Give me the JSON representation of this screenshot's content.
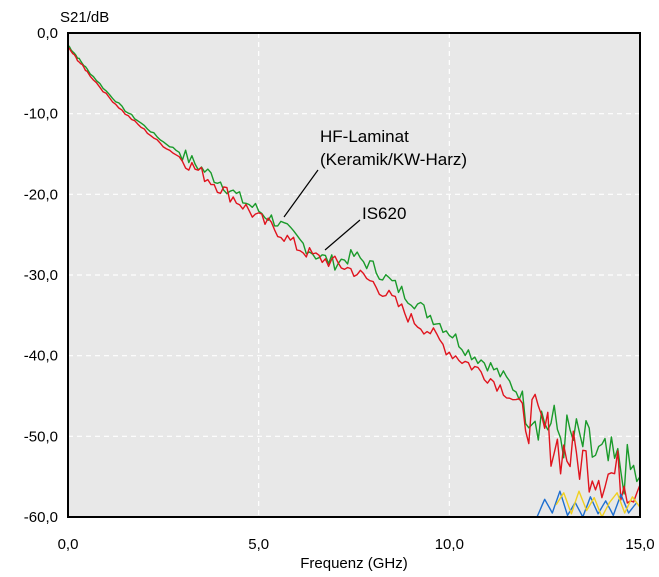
{
  "chart_data": {
    "type": "line",
    "xlabel": "Frequenz (GHz)",
    "ylabel": "S21/dB",
    "xlim": [
      0,
      15
    ],
    "ylim": [
      -60,
      0
    ],
    "grid": true,
    "x_ticks": [
      "0,0",
      "5,0",
      "10,0",
      "15,0"
    ],
    "y_ticks": [
      "0,0",
      "-10,0",
      "-20,0",
      "-30,0",
      "-40,0",
      "-50,0",
      "-60,0"
    ],
    "colors": {
      "plot_bg": "#e8e8e8",
      "grid": "#ffffff",
      "frame": "#000000"
    },
    "series": [
      {
        "name": "HF-Laminat (Keramik/KW-Harz)",
        "color": "#1a9a2a",
        "x": [
          0,
          0.25,
          0.5,
          1.0,
          1.5,
          2.0,
          2.5,
          3.0,
          3.5,
          4.0,
          4.5,
          5.0,
          5.5,
          6.0,
          6.5,
          7.0,
          7.5,
          8.0,
          8.5,
          9.0,
          9.5,
          10.0,
          10.5,
          11.0,
          11.5,
          12.0,
          12.5,
          13.0,
          13.5,
          14.0,
          14.5,
          15.0
        ],
        "y": [
          -1.5,
          -3.0,
          -4.5,
          -7.2,
          -9.6,
          -11.5,
          -13.5,
          -15.0,
          -16.8,
          -18.4,
          -20.5,
          -22.0,
          -23.5,
          -25.5,
          -27.5,
          -28.5,
          -27.6,
          -29.0,
          -31.0,
          -33.0,
          -35.0,
          -37.0,
          -39.5,
          -41.0,
          -43.0,
          -45.5,
          -48.0,
          -50.0,
          -51.0,
          -53.0,
          -54.0,
          -55.0
        ]
      },
      {
        "name": "IS620",
        "color": "#e0141e",
        "x": [
          0,
          0.25,
          0.5,
          1.0,
          1.5,
          2.0,
          2.5,
          3.0,
          3.5,
          4.0,
          4.5,
          5.0,
          5.5,
          6.0,
          6.5,
          7.0,
          7.5,
          8.0,
          8.5,
          9.0,
          9.5,
          10.0,
          10.5,
          11.0,
          11.5,
          12.0,
          12.5,
          13.0,
          13.5,
          14.0,
          14.5,
          15.0
        ],
        "y": [
          -1.8,
          -3.3,
          -4.8,
          -7.6,
          -10.0,
          -12.0,
          -14.0,
          -15.6,
          -17.4,
          -19.2,
          -21.0,
          -23.0,
          -24.5,
          -26.5,
          -27.8,
          -28.5,
          -29.5,
          -31.0,
          -33.0,
          -35.5,
          -37.0,
          -39.5,
          -41.0,
          -42.5,
          -44.5,
          -47.0,
          -49.5,
          -52.0,
          -53.0,
          -54.5,
          -55.0,
          -56.0
        ]
      },
      {
        "name": "",
        "color": "#1e6fd0",
        "x": [
          12.3,
          12.5,
          12.7,
          12.9,
          13.1,
          13.3,
          13.5,
          13.7,
          13.9,
          14.1,
          14.3,
          14.5,
          14.7,
          14.9
        ],
        "y": [
          -60.0,
          -57.8,
          -59.5,
          -56.8,
          -59.8,
          -58.2,
          -60.0,
          -57.5,
          -59.6,
          -58.0,
          -59.8,
          -57.2,
          -59.5,
          -58.3
        ]
      },
      {
        "name": "",
        "color": "#f0d020",
        "x": [
          12.8,
          13.0,
          13.2,
          13.4,
          13.6,
          13.8,
          14.0,
          14.2,
          14.4,
          14.6,
          14.8,
          15.0
        ],
        "y": [
          -58.5,
          -57.0,
          -59.6,
          -56.8,
          -59.2,
          -57.6,
          -60.0,
          -58.2,
          -57.0,
          -59.5,
          -57.5,
          -58.8
        ]
      }
    ],
    "annotations": [
      {
        "lines": [
          "HF-Laminat",
          "(Keramik/KW-Harz)"
        ],
        "points_to": [
          5.7,
          -22.8
        ]
      },
      {
        "lines": [
          "IS620"
        ],
        "points_to": [
          6.7,
          -28.3
        ]
      }
    ]
  }
}
